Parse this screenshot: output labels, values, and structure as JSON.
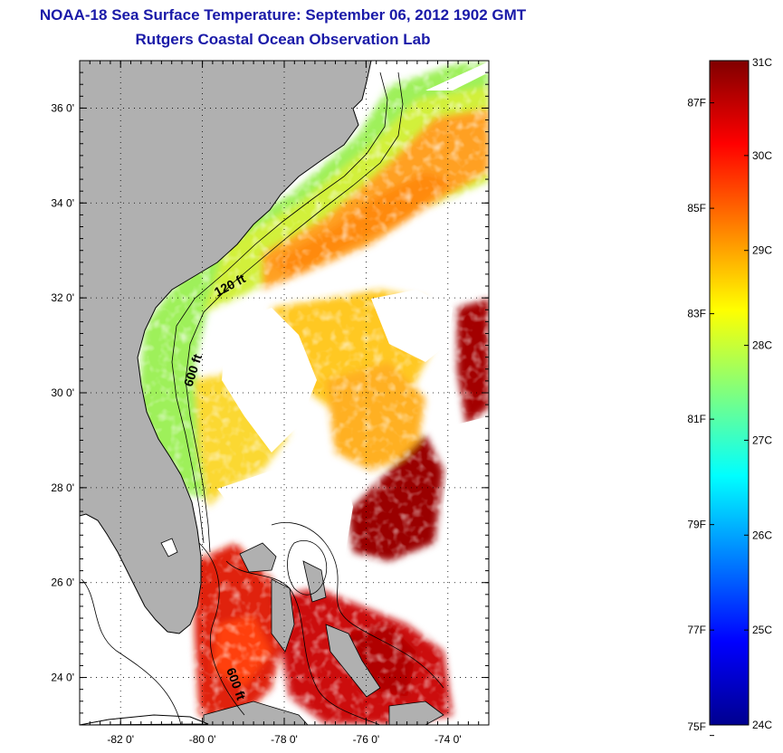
{
  "title": "NOAA-18 Sea Surface Temperature:  September 06, 2012 1902 GMT",
  "subtitle": "Rutgers Coastal Ocean Observation Lab",
  "map": {
    "lon_range": [
      -83,
      -73
    ],
    "lat_range": [
      23,
      37
    ],
    "x_ticks": [
      {
        "value": -82,
        "label": "-82 0'"
      },
      {
        "value": -80,
        "label": "-80 0'"
      },
      {
        "value": -78,
        "label": "-78 0'"
      },
      {
        "value": -76,
        "label": "-76 0'"
      },
      {
        "value": -74,
        "label": "-74 0'"
      }
    ],
    "y_ticks": [
      {
        "value": 24,
        "label": "24 0'"
      },
      {
        "value": 26,
        "label": "26 0'"
      },
      {
        "value": 28,
        "label": "28 0'"
      },
      {
        "value": 30,
        "label": "30 0'"
      },
      {
        "value": 32,
        "label": "32 0'"
      },
      {
        "value": 34,
        "label": "34 0'"
      },
      {
        "value": 36,
        "label": "36 0'"
      }
    ],
    "contour_labels": [
      {
        "text": "120 ft"
      },
      {
        "text": "600 ft"
      },
      {
        "text": "600 ft"
      }
    ],
    "land_color": "#b0b0b0",
    "cloud_color": "#ffffff"
  },
  "colorbar": {
    "range_c": [
      24,
      31
    ],
    "celsius_labels": [
      "31C",
      "30C",
      "29C",
      "28C",
      "27C",
      "26C",
      "25C",
      "24C"
    ],
    "fahrenheit_labels": [
      "87F",
      "85F",
      "83F",
      "81F",
      "79F",
      "77F",
      "75F"
    ],
    "fahrenheit_values": [
      87,
      85,
      83,
      81,
      79,
      77,
      75
    ]
  }
}
